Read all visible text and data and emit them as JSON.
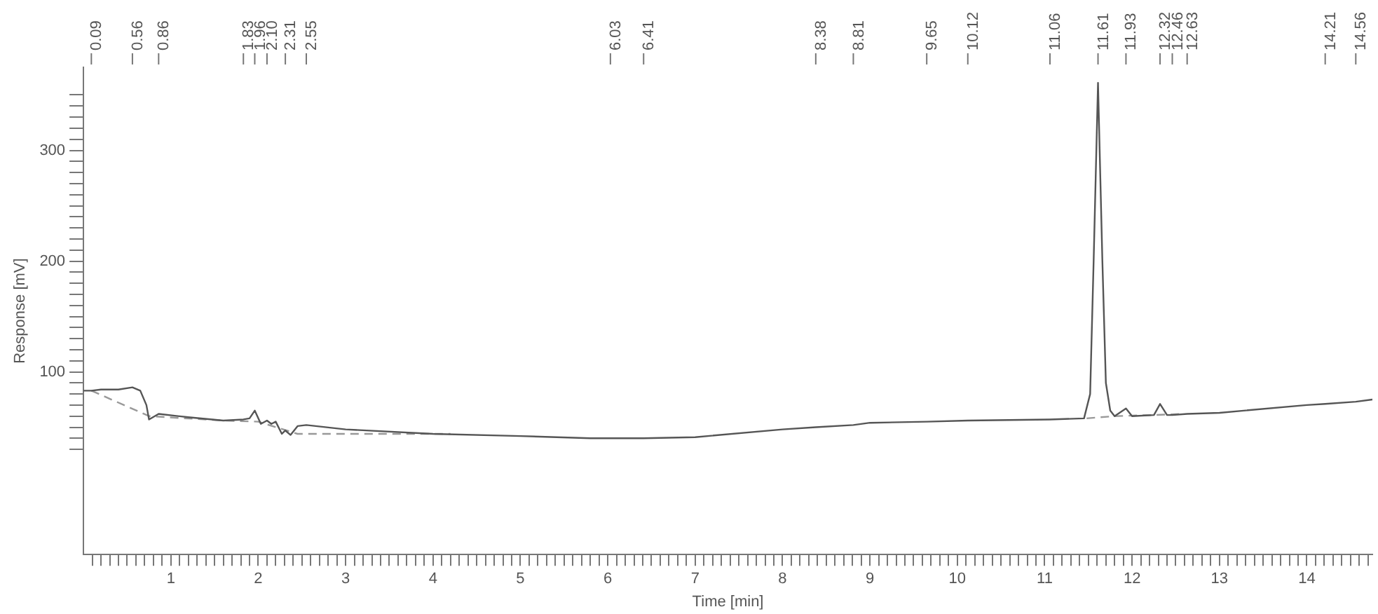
{
  "chart_data": {
    "type": "line",
    "xlabel": "Time [min]",
    "ylabel": "Response [mV]",
    "xlim": [
      0,
      14.75
    ],
    "ylim": [
      -65,
      375
    ],
    "xticks": [
      {
        "value": 0.1,
        "label": null
      },
      {
        "value": 0.2,
        "label": null
      },
      {
        "value": 0.3,
        "label": null
      },
      {
        "value": 0.4,
        "label": null
      },
      {
        "value": 0.5,
        "label": null
      },
      {
        "value": 0.6,
        "label": null
      },
      {
        "value": 0.7,
        "label": null
      },
      {
        "value": 0.8,
        "label": null
      },
      {
        "value": 0.9,
        "label": null
      },
      1,
      {
        "value": 1.1,
        "label": null
      },
      {
        "value": 1.2,
        "label": null
      },
      {
        "value": 1.3,
        "label": null
      },
      {
        "value": 1.4,
        "label": null
      },
      {
        "value": 1.5,
        "label": null
      },
      {
        "value": 1.6,
        "label": null
      },
      {
        "value": 1.7,
        "label": null
      },
      {
        "value": 1.8,
        "label": null
      },
      {
        "value": 1.9,
        "label": null
      },
      2,
      {
        "value": 2.1,
        "label": null
      },
      {
        "value": 2.2,
        "label": null
      },
      {
        "value": 2.3,
        "label": null
      },
      {
        "value": 2.4,
        "label": null
      },
      {
        "value": 2.5,
        "label": null
      },
      {
        "value": 2.6,
        "label": null
      },
      {
        "value": 2.7,
        "label": null
      },
      {
        "value": 2.8,
        "label": null
      },
      {
        "value": 2.9,
        "label": null
      },
      3,
      {
        "value": 3.1,
        "label": null
      },
      {
        "value": 3.2,
        "label": null
      },
      {
        "value": 3.3,
        "label": null
      },
      {
        "value": 3.4,
        "label": null
      },
      {
        "value": 3.5,
        "label": null
      },
      {
        "value": 3.6,
        "label": null
      },
      {
        "value": 3.7,
        "label": null
      },
      {
        "value": 3.8,
        "label": null
      },
      {
        "value": 3.9,
        "label": null
      },
      4,
      {
        "value": 4.1,
        "label": null
      },
      {
        "value": 4.2,
        "label": null
      },
      {
        "value": 4.3,
        "label": null
      },
      {
        "value": 4.4,
        "label": null
      },
      {
        "value": 4.5,
        "label": null
      },
      {
        "value": 4.6,
        "label": null
      },
      {
        "value": 4.7,
        "label": null
      },
      {
        "value": 4.8,
        "label": null
      },
      {
        "value": 4.9,
        "label": null
      },
      5,
      {
        "value": 5.1,
        "label": null
      },
      {
        "value": 5.2,
        "label": null
      },
      {
        "value": 5.3,
        "label": null
      },
      {
        "value": 5.4,
        "label": null
      },
      {
        "value": 5.5,
        "label": null
      },
      {
        "value": 5.6,
        "label": null
      },
      {
        "value": 5.7,
        "label": null
      },
      {
        "value": 5.8,
        "label": null
      },
      {
        "value": 5.9,
        "label": null
      },
      6,
      {
        "value": 6.1,
        "label": null
      },
      {
        "value": 6.2,
        "label": null
      },
      {
        "value": 6.3,
        "label": null
      },
      {
        "value": 6.4,
        "label": null
      },
      {
        "value": 6.5,
        "label": null
      },
      {
        "value": 6.6,
        "label": null
      },
      {
        "value": 6.7,
        "label": null
      },
      {
        "value": 6.8,
        "label": null
      },
      {
        "value": 6.9,
        "label": null
      },
      7,
      {
        "value": 7.1,
        "label": null
      },
      {
        "value": 7.2,
        "label": null
      },
      {
        "value": 7.3,
        "label": null
      },
      {
        "value": 7.4,
        "label": null
      },
      {
        "value": 7.5,
        "label": null
      },
      {
        "value": 7.6,
        "label": null
      },
      {
        "value": 7.7,
        "label": null
      },
      {
        "value": 7.8,
        "label": null
      },
      {
        "value": 7.9,
        "label": null
      },
      8,
      {
        "value": 8.1,
        "label": null
      },
      {
        "value": 8.2,
        "label": null
      },
      {
        "value": 8.3,
        "label": null
      },
      {
        "value": 8.4,
        "label": null
      },
      {
        "value": 8.5,
        "label": null
      },
      {
        "value": 8.6,
        "label": null
      },
      {
        "value": 8.7,
        "label": null
      },
      {
        "value": 8.8,
        "label": null
      },
      {
        "value": 8.9,
        "label": null
      },
      9,
      {
        "value": 9.1,
        "label": null
      },
      {
        "value": 9.2,
        "label": null
      },
      {
        "value": 9.3,
        "label": null
      },
      {
        "value": 9.4,
        "label": null
      },
      {
        "value": 9.5,
        "label": null
      },
      {
        "value": 9.6,
        "label": null
      },
      {
        "value": 9.7,
        "label": null
      },
      {
        "value": 9.8,
        "label": null
      },
      {
        "value": 9.9,
        "label": null
      },
      10,
      {
        "value": 10.1,
        "label": null
      },
      {
        "value": 10.2,
        "label": null
      },
      {
        "value": 10.3,
        "label": null
      },
      {
        "value": 10.4,
        "label": null
      },
      {
        "value": 10.5,
        "label": null
      },
      {
        "value": 10.6,
        "label": null
      },
      {
        "value": 10.7,
        "label": null
      },
      {
        "value": 10.8,
        "label": null
      },
      {
        "value": 10.9,
        "label": null
      },
      11,
      {
        "value": 11.1,
        "label": null
      },
      {
        "value": 11.2,
        "label": null
      },
      {
        "value": 11.3,
        "label": null
      },
      {
        "value": 11.4,
        "label": null
      },
      {
        "value": 11.5,
        "label": null
      },
      {
        "value": 11.6,
        "label": null
      },
      {
        "value": 11.7,
        "label": null
      },
      {
        "value": 11.8,
        "label": null
      },
      {
        "value": 11.9,
        "label": null
      },
      12,
      {
        "value": 12.1,
        "label": null
      },
      {
        "value": 12.2,
        "label": null
      },
      {
        "value": 12.3,
        "label": null
      },
      {
        "value": 12.4,
        "label": null
      },
      {
        "value": 12.5,
        "label": null
      },
      {
        "value": 12.6,
        "label": null
      },
      {
        "value": 12.7,
        "label": null
      },
      {
        "value": 12.8,
        "label": null
      },
      {
        "value": 12.9,
        "label": null
      },
      13,
      {
        "value": 13.1,
        "label": null
      },
      {
        "value": 13.2,
        "label": null
      },
      {
        "value": 13.3,
        "label": null
      },
      {
        "value": 13.4,
        "label": null
      },
      {
        "value": 13.5,
        "label": null
      },
      {
        "value": 13.6,
        "label": null
      },
      {
        "value": 13.7,
        "label": null
      },
      {
        "value": 13.8,
        "label": null
      },
      {
        "value": 13.9,
        "label": null
      },
      14,
      {
        "value": 14.1,
        "label": null
      },
      {
        "value": 14.2,
        "label": null
      },
      {
        "value": 14.3,
        "label": null
      },
      {
        "value": 14.4,
        "label": null
      },
      {
        "value": 14.5,
        "label": null
      },
      {
        "value": 14.6,
        "label": null
      },
      {
        "value": 14.7,
        "label": null
      }
    ],
    "yticks": [
      {
        "value": 30,
        "label": null
      },
      {
        "value": 40,
        "label": null
      },
      {
        "value": 50,
        "label": null
      },
      {
        "value": 60,
        "label": null
      },
      {
        "value": 70,
        "label": null
      },
      {
        "value": 80,
        "label": null
      },
      {
        "value": 90,
        "label": null
      },
      100,
      {
        "value": 110,
        "label": null
      },
      {
        "value": 120,
        "label": null
      },
      {
        "value": 130,
        "label": null
      },
      {
        "value": 140,
        "label": null
      },
      {
        "value": 150,
        "label": null
      },
      {
        "value": 160,
        "label": null
      },
      {
        "value": 170,
        "label": null
      },
      {
        "value": 180,
        "label": null
      },
      {
        "value": 190,
        "label": null
      },
      200,
      {
        "value": 210,
        "label": null
      },
      {
        "value": 220,
        "label": null
      },
      {
        "value": 230,
        "label": null
      },
      {
        "value": 240,
        "label": null
      },
      {
        "value": 250,
        "label": null
      },
      {
        "value": 260,
        "label": null
      },
      {
        "value": 270,
        "label": null
      },
      {
        "value": 280,
        "label": null
      },
      {
        "value": 290,
        "label": null
      },
      300,
      {
        "value": 310,
        "label": null
      },
      {
        "value": 320,
        "label": null
      },
      {
        "value": 330,
        "label": null
      },
      {
        "value": 340,
        "label": null
      },
      {
        "value": 350,
        "label": null
      }
    ],
    "grid": false,
    "legend": false,
    "marker": "none",
    "series": [
      {
        "color": "#555555",
        "line_style": "solid",
        "x": [
          0,
          0.09,
          0.2,
          0.4,
          0.56,
          0.65,
          0.72,
          0.75,
          0.86,
          1.2,
          1.6,
          1.83,
          1.9,
          1.96,
          2.03,
          2.1,
          2.15,
          2.2,
          2.27,
          2.31,
          2.37,
          2.45,
          2.55,
          3,
          4,
          5,
          5.8,
          6.03,
          6.41,
          7,
          8,
          8.38,
          8.81,
          9,
          9.65,
          10.12,
          11.06,
          11.45,
          11.52,
          11.56,
          11.61,
          11.66,
          11.7,
          11.75,
          11.8,
          11.93,
          12,
          12.25,
          12.32,
          12.4,
          12.46,
          12.63,
          13,
          14,
          14.21,
          14.56,
          14.75
        ],
        "values": [
          83,
          83,
          84,
          84,
          86,
          83,
          70,
          57,
          62,
          59,
          56,
          57,
          58,
          65,
          53,
          56,
          53,
          55,
          44,
          47,
          43,
          51,
          52,
          48,
          44,
          42,
          40,
          40,
          40,
          41,
          48,
          50,
          52,
          54,
          55,
          56,
          57,
          58,
          80,
          200,
          361,
          200,
          90,
          65,
          60,
          67,
          60,
          61,
          71,
          61,
          61,
          62,
          63,
          70,
          71,
          73,
          75
        ]
      },
      {
        "color": "#999999",
        "line_style": "dashed",
        "x": [
          0.09,
          0.75,
          1.6,
          2,
          2.45,
          4.2,
          null,
          11.48,
          11.8,
          12.25,
          12.6
        ],
        "values": [
          83,
          60,
          56,
          55,
          44,
          44,
          null,
          58,
          60,
          61,
          62
        ]
      }
    ],
    "ref_lines": [
      {
        "axis": "x",
        "value": 0.09,
        "label": "0.09"
      },
      {
        "axis": "x",
        "value": 0.56,
        "label": "0.56"
      },
      {
        "axis": "x",
        "value": 0.86,
        "label": "0.86"
      },
      {
        "axis": "x",
        "value": 1.83,
        "label": "1.83"
      },
      {
        "axis": "x",
        "value": 1.96,
        "label": "1.96"
      },
      {
        "axis": "x",
        "value": 2.1,
        "label": "2.10"
      },
      {
        "axis": "x",
        "value": 2.31,
        "label": "2.31"
      },
      {
        "axis": "x",
        "value": 2.55,
        "label": "2.55"
      },
      {
        "axis": "x",
        "value": 6.03,
        "label": "6.03"
      },
      {
        "axis": "x",
        "value": 6.41,
        "label": "6.41"
      },
      {
        "axis": "x",
        "value": 8.38,
        "label": "8.38"
      },
      {
        "axis": "x",
        "value": 8.81,
        "label": "8.81"
      },
      {
        "axis": "x",
        "value": 9.65,
        "label": "9.65"
      },
      {
        "axis": "x",
        "value": 10.12,
        "label": "10.12"
      },
      {
        "axis": "x",
        "value": 11.06,
        "label": "11.06"
      },
      {
        "axis": "x",
        "value": 11.61,
        "label": "11.61"
      },
      {
        "axis": "x",
        "value": 11.93,
        "label": "11.93"
      },
      {
        "axis": "x",
        "value": 12.32,
        "label": "12.32"
      },
      {
        "axis": "x",
        "value": 12.46,
        "label": "12.46"
      },
      {
        "axis": "x",
        "value": 12.63,
        "label": "12.63"
      },
      {
        "axis": "x",
        "value": 14.21,
        "label": "14.21"
      },
      {
        "axis": "x",
        "value": 14.56,
        "label": "14.56"
      }
    ]
  }
}
